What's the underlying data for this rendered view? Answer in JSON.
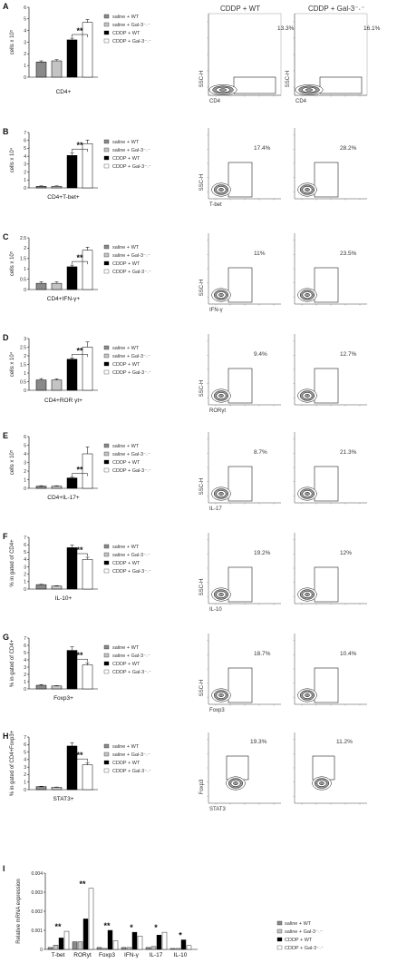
{
  "legend": [
    "saline + WT",
    "saline + Gal-3⁻˴⁻",
    "CDDP + WT",
    "CDDP + Gal-3⁻˴⁻"
  ],
  "legend_colors": [
    "#8a8a8a",
    "#c4c4c4",
    "#000000",
    "#ffffff"
  ],
  "flow_headers": [
    "CDDP + WT",
    "CDDP + Gal-3⁻˴⁻"
  ],
  "significance": "**",
  "panel_I_sig": [
    "**",
    "**",
    "**",
    "*",
    "*",
    "*"
  ],
  "chart_data": [
    {
      "panel": "A",
      "type": "bar",
      "xlabel": "CD4+",
      "ylabel": "cells x 10⁵",
      "ticks": [
        "0",
        "1",
        "2",
        "3",
        "4",
        "5",
        "6"
      ],
      "ylim": [
        0,
        6
      ],
      "values": [
        1.3,
        1.4,
        3.2,
        4.7
      ],
      "errors": [
        0.1,
        0.1,
        0.15,
        0.25
      ],
      "flow": {
        "x_label": "CD4",
        "y_label": "SSC-H",
        "percents": [
          "13.3%",
          "16.1%"
        ]
      }
    },
    {
      "panel": "B",
      "type": "bar",
      "xlabel": "CD4+T-bet+",
      "ylabel": "cells x 10⁴",
      "ticks": [
        "0",
        "1",
        "2",
        "3",
        "4",
        "5",
        "6",
        "7"
      ],
      "ylim": [
        0,
        7
      ],
      "values": [
        0.2,
        0.2,
        4.1,
        5.6
      ],
      "errors": [
        0.05,
        0.05,
        0.35,
        0.45
      ],
      "flow": {
        "x_label": "T-bet",
        "y_label": "SSC-H",
        "percents": [
          "17.4%",
          "28.2%"
        ]
      }
    },
    {
      "panel": "C",
      "type": "bar",
      "xlabel": "CD4+IFN-γ+",
      "ylabel": "cells x 10⁵",
      "ticks": [
        "0",
        "0.5",
        "1",
        "1.5",
        "2",
        "2.5"
      ],
      "ylim": [
        0,
        2.5
      ],
      "values": [
        0.3,
        0.3,
        1.1,
        1.9
      ],
      "errors": [
        0.08,
        0.07,
        0.08,
        0.15
      ],
      "flow": {
        "x_label": "IFN-γ",
        "y_label": "SSC-H",
        "percents": [
          "11%",
          "23.5%"
        ]
      }
    },
    {
      "panel": "D",
      "type": "bar",
      "xlabel": "CD4+ROR γt+",
      "ylabel": "cells x 10⁴",
      "ticks": [
        "0",
        "0.5",
        "1",
        "1.5",
        "2",
        "2.5",
        "3"
      ],
      "ylim": [
        0,
        3
      ],
      "values": [
        0.6,
        0.6,
        1.8,
        2.5
      ],
      "errors": [
        0.08,
        0.07,
        0.08,
        0.3
      ],
      "flow": {
        "x_label": "RORγt",
        "y_label": "SSC-H",
        "percents": [
          "9.4%",
          "12.7%"
        ]
      }
    },
    {
      "panel": "E",
      "type": "bar",
      "xlabel": "CD4+IL-17+",
      "ylabel": "cells x 10⁵",
      "ticks": [
        "0",
        "1",
        "2",
        "3",
        "4",
        "5",
        "6"
      ],
      "ylim": [
        0,
        6
      ],
      "values": [
        0.25,
        0.25,
        1.2,
        4.0
      ],
      "errors": [
        0.05,
        0.05,
        0.1,
        0.8
      ],
      "flow": {
        "x_label": "IL-17",
        "y_label": "SSC-H",
        "percents": [
          "8.7%",
          "21.3%"
        ]
      }
    },
    {
      "panel": "F",
      "type": "bar",
      "xlabel": "IL-10+",
      "ylabel": "% in gated of CD4+",
      "ticks": [
        "0",
        "1",
        "2",
        "3",
        "4",
        "5",
        "6",
        "7"
      ],
      "ylim": [
        0,
        7
      ],
      "values": [
        0.6,
        0.4,
        5.6,
        4.0
      ],
      "errors": [
        0.05,
        0.05,
        0.35,
        0.3
      ],
      "flow": {
        "x_label": "IL-10",
        "y_label": "SSC-H",
        "percents": [
          "19.2%",
          "12%"
        ]
      }
    },
    {
      "panel": "G",
      "type": "bar",
      "xlabel": "Foxp3+",
      "ylabel": "% in gated of CD4+",
      "ticks": [
        "0",
        "1",
        "2",
        "3",
        "4",
        "5",
        "6",
        "7"
      ],
      "ylim": [
        0,
        7
      ],
      "values": [
        0.5,
        0.4,
        5.3,
        3.3
      ],
      "errors": [
        0.1,
        0.05,
        0.5,
        0.3
      ],
      "flow": {
        "x_label": "Foxp3",
        "y_label": "SSC-H",
        "percents": [
          "18.7%",
          "10.4%"
        ]
      }
    },
    {
      "panel": "H",
      "type": "bar",
      "xlabel": "STAT3+",
      "ylabel": "% in gated of CD4+Foxp3+",
      "ticks": [
        "0",
        "1",
        "2",
        "3",
        "4",
        "5",
        "6",
        "7"
      ],
      "ylim": [
        0,
        7
      ],
      "values": [
        0.4,
        0.3,
        5.8,
        3.3
      ],
      "errors": [
        0.05,
        0.05,
        0.45,
        0.3
      ],
      "flow": {
        "x_label": "STAT3",
        "y_label": "Foxp3",
        "percents": [
          "19.3%",
          "11.2%"
        ]
      }
    },
    {
      "panel": "I",
      "type": "bar",
      "ylabel": "Relative mRNA expression",
      "ticks": [
        "0",
        "0.001",
        "0.002",
        "0.003",
        "0.004"
      ],
      "ylim": [
        0,
        0.004
      ],
      "categories": [
        "T-bet",
        "RORyt",
        "Foxp3",
        "IFN-γ",
        "IL-17",
        "IL-10"
      ],
      "series_values": [
        [
          0.0001,
          0.00022,
          0.0006,
          0.00095
        ],
        [
          0.0004,
          0.0004,
          0.0016,
          0.0032
        ],
        [
          0.0001,
          5e-05,
          0.001,
          0.00045
        ],
        [
          0.0001,
          0.0001,
          0.0009,
          0.0007
        ],
        [
          0.0001,
          0.00015,
          0.00075,
          0.0009
        ],
        [
          5e-05,
          5e-05,
          0.0005,
          0.0002
        ]
      ]
    }
  ]
}
